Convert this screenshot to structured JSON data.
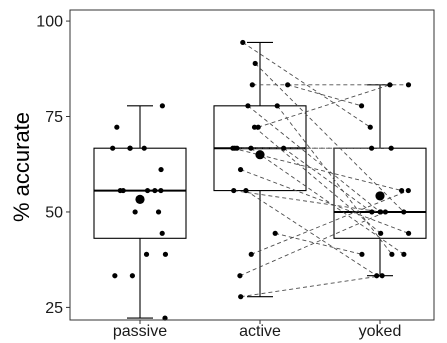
{
  "chart_data": {
    "type": "box",
    "ylabel": "% accurate",
    "categories": [
      "passive",
      "active",
      "yoked"
    ],
    "ylim": [
      21.7,
      102.9
    ],
    "yticks": [
      25,
      50,
      75,
      100
    ],
    "grid": false,
    "boxes": [
      {
        "whisker_low": 22.2,
        "q1": 43.1,
        "median": 55.6,
        "q3": 66.7,
        "whisker_high": 77.8,
        "mean": 53.3
      },
      {
        "whisker_low": 27.8,
        "q1": 55.6,
        "median": 66.7,
        "q3": 77.8,
        "whisker_high": 94.4,
        "mean": 65.0
      },
      {
        "whisker_low": 33.3,
        "q1": 43.1,
        "median": 50.0,
        "q3": 66.7,
        "whisker_high": 83.3,
        "mean": 54.2
      }
    ],
    "points": [
      [
        77.8,
        72.2,
        66.7,
        66.7,
        66.7,
        66.7,
        61.1,
        55.6,
        55.6,
        55.6,
        55.6,
        55.6,
        50.0,
        50.0,
        44.4,
        38.9,
        38.9,
        33.3,
        33.3,
        22.2
      ],
      [
        94.4,
        88.9,
        83.3,
        83.3,
        77.8,
        77.8,
        72.2,
        72.2,
        66.7,
        66.7,
        66.7,
        66.7,
        66.7,
        61.1,
        55.6,
        55.6,
        44.4,
        38.9,
        33.3,
        27.8
      ],
      [
        72.2,
        50.0,
        83.3,
        77.8,
        50.0,
        38.9,
        83.3,
        44.4,
        66.7,
        55.6,
        50.0,
        38.9,
        66.7,
        44.4,
        33.3,
        50.0,
        38.9,
        55.6,
        50.0,
        33.3
      ]
    ],
    "paired_series": [
      1,
      2
    ],
    "colors": {
      "points": "#000000",
      "paired_lines": "#4d4d4d",
      "box_outline": "#000000",
      "panel_border": "#333333"
    }
  }
}
